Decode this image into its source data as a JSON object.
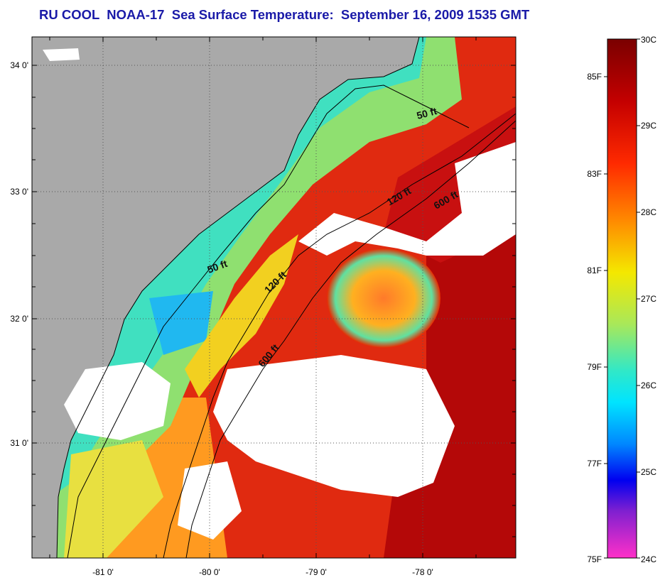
{
  "title": "RU COOL  NOAA-17  Sea Surface Temperature:  September 16, 2009 1535 GMT",
  "map": {
    "lon_ticks": [
      "-81 0'",
      "-80 0'",
      "-79 0'",
      "-78 0'"
    ],
    "lat_ticks": [
      "34 0'",
      "33 0'",
      "32 0'",
      "31 0'"
    ],
    "depth_labels": [
      "50 ft",
      "120 ft",
      "600 ft",
      "50 ft",
      "120 ft",
      "600 ft"
    ],
    "colors": {
      "land": "#a9a9a9",
      "cloud": "#ffffff",
      "coast_line": "#000000"
    }
  },
  "colorbar": {
    "celsius_labels": [
      "30C",
      "29C",
      "28C",
      "27C",
      "26C",
      "25C",
      "24C"
    ],
    "fahrenheit_labels": [
      "85F",
      "83F",
      "81F",
      "79F",
      "77F",
      "75F"
    ],
    "gradient_stops": [
      "#7a0000",
      "#d40000",
      "#ff3c00",
      "#ff9a00",
      "#f2f200",
      "#7ee56e",
      "#00f0ff",
      "#0090ff",
      "#0000ff",
      "#9a00ff",
      "#ff30c0"
    ]
  }
}
